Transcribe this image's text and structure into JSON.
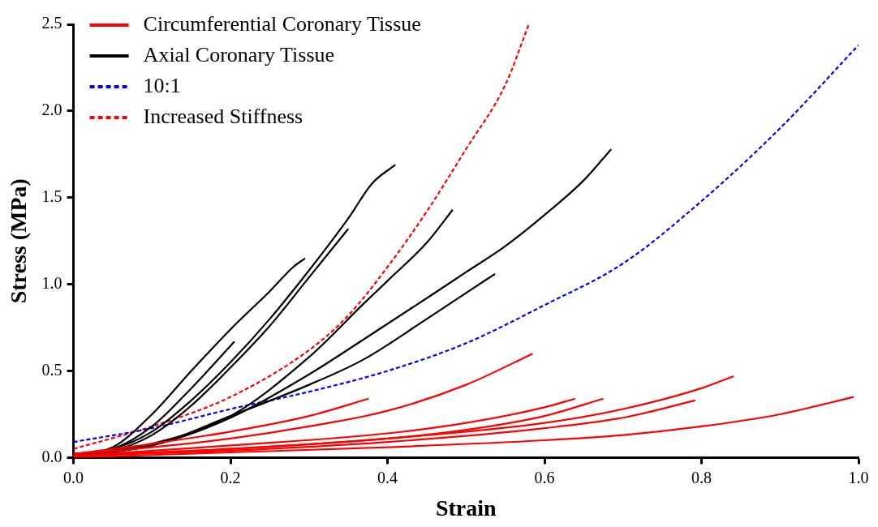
{
  "chart_data": {
    "type": "line",
    "xlabel": "Strain",
    "ylabel": "Stress (MPa)",
    "xlim": [
      0,
      1
    ],
    "ylim": [
      0,
      2.5
    ],
    "xticks": [
      {
        "value": 0,
        "label": "0.0"
      },
      0.2,
      0.4,
      0.6,
      0.8,
      {
        "value": 1,
        "label": "1.0"
      }
    ],
    "yticks": [
      {
        "value": 0,
        "label": "0.0"
      },
      0.5,
      {
        "value": 1,
        "label": "1.0"
      },
      1.5,
      {
        "value": 2,
        "label": "2.0"
      },
      2.5
    ],
    "grid": false,
    "legend": "top left",
    "marker": "none",
    "series": [
      {
        "name": "Circumferential Coronary Tissue",
        "color": "#ff0000",
        "line_style": "solid",
        "x": [
          0,
          0.1,
          0.2,
          0.3,
          0.376
        ],
        "values": [
          0.02,
          0.08,
          0.15,
          0.24,
          0.34
        ]
      },
      {
        "color": "#ff0000",
        "line_style": "solid",
        "x": [
          0,
          0.1,
          0.2,
          0.3,
          0.4,
          0.5,
          0.585
        ],
        "values": [
          0.02,
          0.06,
          0.11,
          0.18,
          0.27,
          0.42,
          0.6
        ]
      },
      {
        "color": "#ff0000",
        "line_style": "solid",
        "x": [
          0,
          0.2,
          0.4,
          0.5,
          0.6,
          0.639
        ],
        "values": [
          0.01,
          0.07,
          0.14,
          0.2,
          0.29,
          0.34
        ]
      },
      {
        "color": "#ff0000",
        "line_style": "solid",
        "x": [
          0,
          0.2,
          0.4,
          0.5,
          0.6,
          0.675
        ],
        "values": [
          0.01,
          0.05,
          0.11,
          0.16,
          0.24,
          0.34
        ]
      },
      {
        "color": "#ff0000",
        "line_style": "solid",
        "x": [
          0,
          0.2,
          0.4,
          0.6,
          0.7,
          0.8,
          0.841
        ],
        "values": [
          0.01,
          0.05,
          0.11,
          0.2,
          0.28,
          0.4,
          0.47
        ]
      },
      {
        "color": "#ff0000",
        "line_style": "solid",
        "x": [
          0,
          0.2,
          0.4,
          0.6,
          0.7,
          0.792
        ],
        "values": [
          0.01,
          0.04,
          0.09,
          0.17,
          0.23,
          0.33
        ]
      },
      {
        "color": "#ff0000",
        "line_style": "solid",
        "x": [
          0,
          0.2,
          0.4,
          0.6,
          0.7,
          0.8,
          0.9,
          0.994
        ],
        "values": [
          0,
          0.03,
          0.06,
          0.1,
          0.13,
          0.18,
          0.25,
          0.35
        ]
      },
      {
        "name": "Axial Coronary Tissue",
        "color": "#000000",
        "line_style": "solid",
        "x": [
          0,
          0.05,
          0.1,
          0.15,
          0.2,
          0.25,
          0.28,
          0.295
        ],
        "values": [
          0.02,
          0.06,
          0.25,
          0.5,
          0.74,
          0.96,
          1.1,
          1.15
        ]
      },
      {
        "color": "#000000",
        "line_style": "solid",
        "x": [
          0,
          0.05,
          0.1,
          0.15,
          0.205
        ],
        "values": [
          0.02,
          0.05,
          0.18,
          0.4,
          0.67
        ]
      },
      {
        "color": "#000000",
        "line_style": "solid",
        "x": [
          0,
          0.05,
          0.1,
          0.15,
          0.2,
          0.25,
          0.3,
          0.35,
          0.38,
          0.41
        ],
        "values": [
          0.02,
          0.05,
          0.15,
          0.33,
          0.55,
          0.8,
          1.08,
          1.38,
          1.58,
          1.69
        ]
      },
      {
        "color": "#000000",
        "line_style": "solid",
        "x": [
          0,
          0.05,
          0.1,
          0.15,
          0.2,
          0.25,
          0.3,
          0.35
        ],
        "values": [
          0.02,
          0.04,
          0.13,
          0.3,
          0.52,
          0.76,
          1.04,
          1.32
        ]
      },
      {
        "color": "#000000",
        "line_style": "solid",
        "x": [
          0,
          0.1,
          0.2,
          0.3,
          0.37,
          0.4,
          0.45,
          0.483
        ],
        "values": [
          0.01,
          0.08,
          0.24,
          0.58,
          0.89,
          1.02,
          1.24,
          1.43
        ]
      },
      {
        "color": "#000000",
        "line_style": "solid",
        "x": [
          0,
          0.1,
          0.2,
          0.3,
          0.369,
          0.45,
          0.5,
          0.55,
          0.6,
          0.65,
          0.685
        ],
        "values": [
          0.01,
          0.07,
          0.23,
          0.48,
          0.68,
          0.92,
          1.07,
          1.22,
          1.4,
          1.6,
          1.78
        ]
      },
      {
        "color": "#000000",
        "line_style": "solid",
        "x": [
          0,
          0.1,
          0.2,
          0.3,
          0.369,
          0.45,
          0.5,
          0.537
        ],
        "values": [
          0.01,
          0.07,
          0.24,
          0.42,
          0.565,
          0.8,
          0.95,
          1.06
        ]
      },
      {
        "name": "10:1",
        "color": "#0000ff",
        "line_style": "dashed",
        "x": [
          0,
          0.1,
          0.2,
          0.3,
          0.4,
          0.5,
          0.6,
          0.7,
          0.8,
          0.9,
          1.0
        ],
        "values": [
          0.09,
          0.17,
          0.28,
          0.38,
          0.5,
          0.66,
          0.88,
          1.12,
          1.48,
          1.9,
          2.38
        ]
      },
      {
        "name": "Increased Stiffness",
        "color": "#ff0000",
        "line_style": "dashed",
        "x": [
          0,
          0.1,
          0.2,
          0.3,
          0.35,
          0.4,
          0.45,
          0.5,
          0.55,
          0.58
        ],
        "values": [
          0.05,
          0.18,
          0.35,
          0.62,
          0.82,
          1.1,
          1.42,
          1.78,
          2.15,
          2.5
        ]
      }
    ]
  }
}
